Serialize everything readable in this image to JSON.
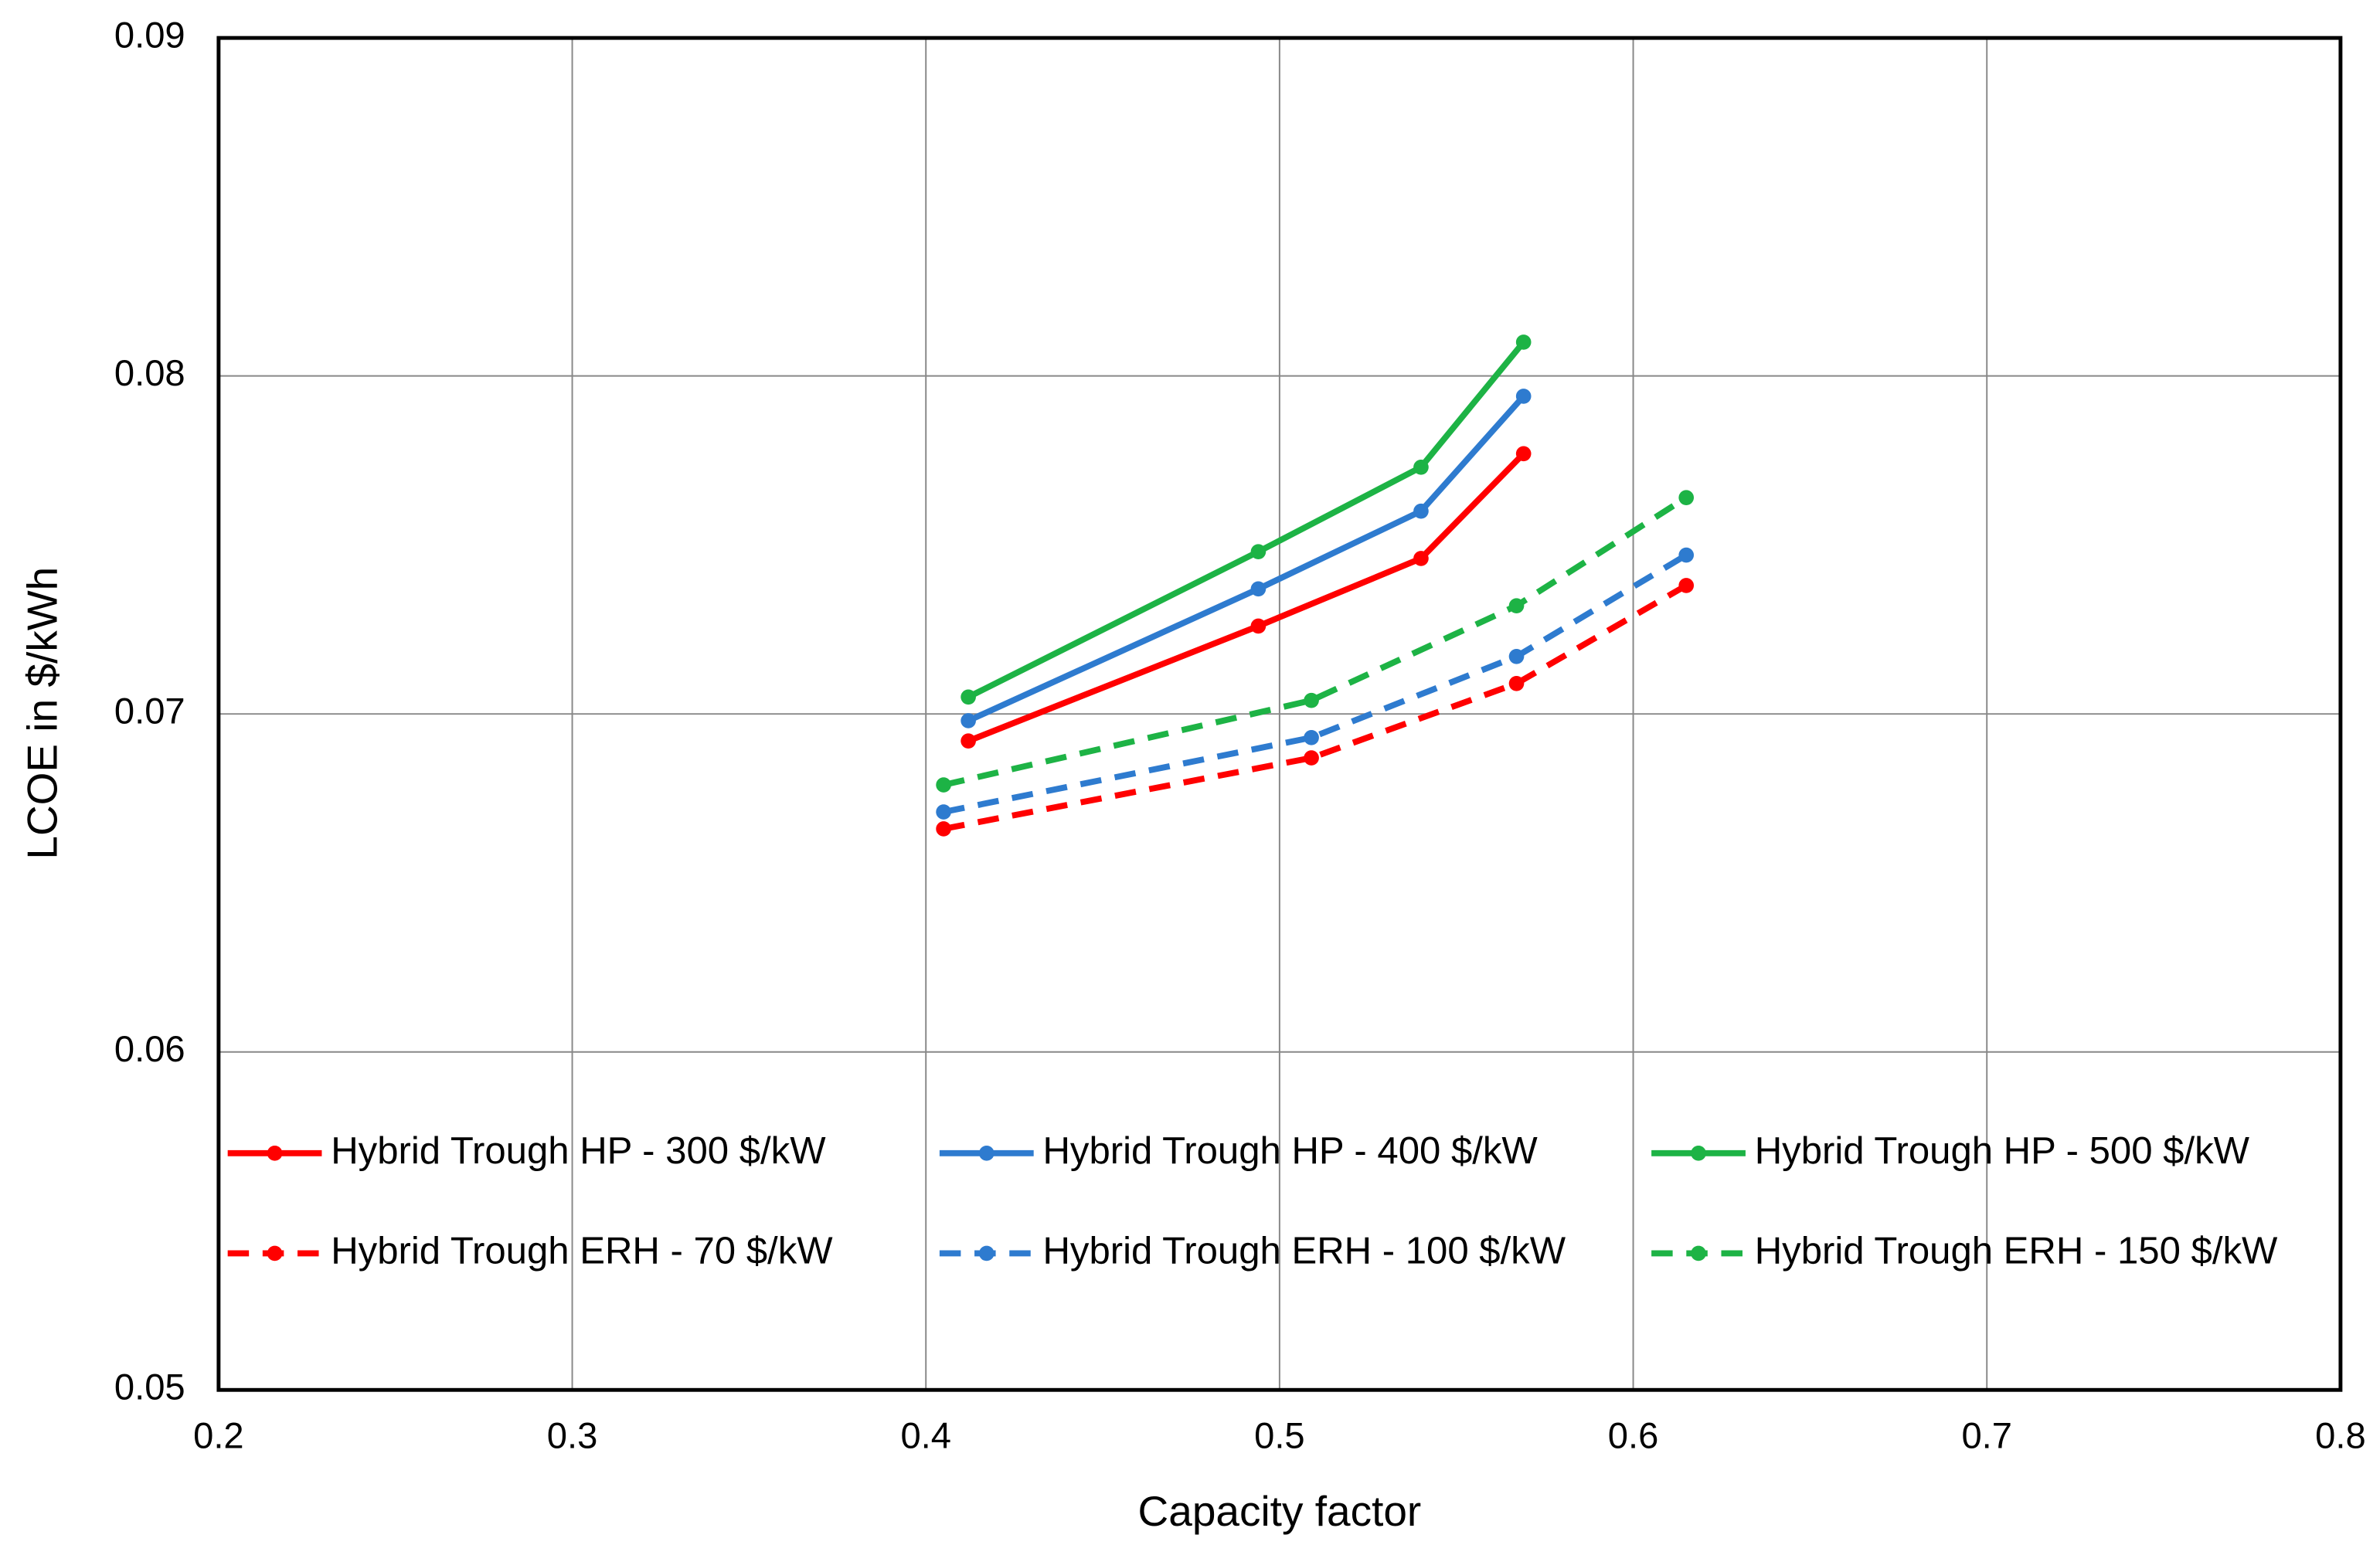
{
  "chart_data": {
    "type": "line",
    "xlabel": "Capacity factor",
    "ylabel": "LCOE in $/kWh",
    "xlim": [
      0.2,
      0.8
    ],
    "xticks": [
      0.2,
      0.3,
      0.4,
      0.5,
      0.6,
      0.7,
      0.8
    ],
    "ylim": [
      0.05,
      0.09
    ],
    "yticks": [
      0.05,
      0.06,
      0.07,
      0.08,
      0.09
    ],
    "grid": true,
    "legend": "lower left",
    "series": [
      {
        "name": "Hybrid Trough HP - 300 $/kW",
        "color": "#ff0000",
        "linestyle": "solid",
        "x": [
          0.412,
          0.494,
          0.54,
          0.569
        ],
        "values": [
          0.0692,
          0.0726,
          0.0746,
          0.0777
        ]
      },
      {
        "name": "Hybrid Trough HP - 400 $/kW",
        "color": "#2e7bcf",
        "linestyle": "solid",
        "x": [
          0.412,
          0.494,
          0.54,
          0.569
        ],
        "values": [
          0.0698,
          0.0737,
          0.076,
          0.0794
        ]
      },
      {
        "name": "Hybrid Trough HP - 500 $/kW",
        "color": "#1db345",
        "linestyle": "solid",
        "x": [
          0.412,
          0.494,
          0.54,
          0.569
        ],
        "values": [
          0.0705,
          0.0748,
          0.0773,
          0.081
        ]
      },
      {
        "name": "Hybrid Trough ERH - 70 $/kW",
        "color": "#ff0000",
        "linestyle": "dashed",
        "x": [
          0.405,
          0.509,
          0.567,
          0.615
        ],
        "values": [
          0.0666,
          0.0687,
          0.0709,
          0.0738
        ]
      },
      {
        "name": "Hybrid Trough ERH - 100 $/kW",
        "color": "#2e7bcf",
        "linestyle": "dashed",
        "x": [
          0.405,
          0.509,
          0.567,
          0.615
        ],
        "values": [
          0.0671,
          0.0693,
          0.0717,
          0.0747
        ]
      },
      {
        "name": "Hybrid Trough ERH - 150 $/kW",
        "color": "#1db345",
        "linestyle": "dashed",
        "x": [
          0.405,
          0.509,
          0.567,
          0.615
        ],
        "values": [
          0.0679,
          0.0704,
          0.0732,
          0.0764
        ]
      }
    ]
  }
}
